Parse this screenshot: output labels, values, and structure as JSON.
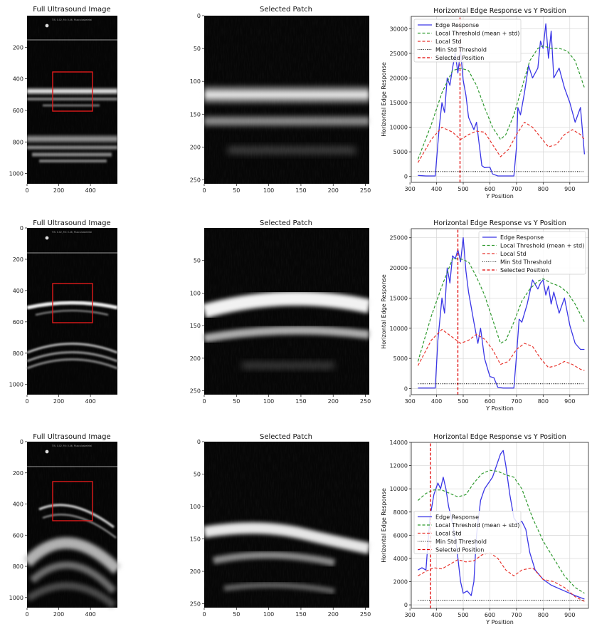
{
  "figure": {
    "rows": [
      {
        "us_image": {
          "title": "Full Ultrasound Image",
          "header_text": "TIS: 0.02, MI: 0.46, Musculoskeletal",
          "xticks": [
            "0",
            "200",
            "400"
          ],
          "yticks": [
            "200",
            "400",
            "600",
            "800",
            "1000"
          ],
          "variant": "flat"
        },
        "patch": {
          "title": "Selected Patch",
          "xticks": [
            "0",
            "50",
            "100",
            "150",
            "200",
            "250"
          ],
          "yticks": [
            "0",
            "50",
            "100",
            "150",
            "200",
            "250"
          ]
        }
      },
      {
        "us_image": {
          "title": "Full Ultrasound Image",
          "header_text": "TIS: 0.02, MI: 0.46, Musculoskeletal",
          "xticks": [
            "0",
            "200",
            "400"
          ],
          "yticks": [
            "0",
            "200",
            "400",
            "600",
            "800",
            "1000"
          ],
          "variant": "curved"
        },
        "patch": {
          "title": "Selected Patch",
          "xticks": [
            "0",
            "50",
            "100",
            "150",
            "200",
            "250"
          ],
          "yticks": [
            "50",
            "100",
            "150",
            "200",
            "250"
          ]
        }
      },
      {
        "us_image": {
          "title": "Full Ultrasound Image",
          "header_text": "TIS: 0.02, MI: 0.46, Musculoskeletal",
          "xticks": [
            "0",
            "200",
            "400"
          ],
          "yticks": [
            "0",
            "200",
            "400",
            "600",
            "800",
            "1000"
          ],
          "variant": "arch"
        },
        "patch": {
          "title": "Selected Patch",
          "xticks": [
            "0",
            "50",
            "100",
            "150",
            "200",
            "250"
          ],
          "yticks": [
            "0",
            "50",
            "100",
            "150",
            "200",
            "250"
          ]
        }
      }
    ],
    "colors": {
      "edge": "#3a36e6",
      "threshold": "#2f9a2f",
      "std": "#e8352e",
      "min_std": "#111111",
      "selected": "#e00000",
      "box": "#e01a1a"
    }
  },
  "chart_data": [
    {
      "type": "line",
      "title": "Horizontal Edge Response vs Y Position",
      "xlabel": "Y Position",
      "ylabel": "Horizontal Edge Response",
      "xlim": [
        305,
        970
      ],
      "ylim": [
        -1200,
        32500
      ],
      "xticks": [
        300,
        400,
        500,
        600,
        700,
        800,
        900
      ],
      "yticks": [
        0,
        5000,
        10000,
        15000,
        20000,
        25000,
        30000
      ],
      "grid": true,
      "legend": "top-left",
      "legend_entries": [
        "Edge Response",
        "Local Threshold (mean + std)",
        "Local Std",
        "Min Std Threshold",
        "Selected Position"
      ],
      "series": [
        {
          "name": "Edge Response",
          "x": [
            330,
            360,
            395,
            410,
            420,
            430,
            440,
            450,
            460,
            470,
            480,
            490,
            500,
            510,
            520,
            540,
            550,
            560,
            570,
            580,
            600,
            610,
            630,
            650,
            690,
            700,
            705,
            715,
            730,
            745,
            760,
            780,
            790,
            800,
            810,
            820,
            830,
            840,
            860,
            880,
            900,
            920,
            940,
            955
          ],
          "y": [
            200,
            100,
            100,
            10000,
            15000,
            13000,
            20000,
            18500,
            22000,
            25000,
            21000,
            25500,
            19500,
            16500,
            12000,
            9500,
            11000,
            6500,
            2200,
            1800,
            1900,
            500,
            100,
            100,
            100,
            6000,
            14000,
            12500,
            17000,
            22500,
            20000,
            22000,
            27500,
            26000,
            31000,
            24000,
            29500,
            20000,
            22000,
            18000,
            15000,
            11000,
            14000,
            4500
          ]
        },
        {
          "name": "Local Threshold (mean + std)",
          "x": [
            330,
            380,
            420,
            460,
            490,
            520,
            550,
            580,
            610,
            640,
            660,
            690,
            720,
            750,
            780,
            800,
            830,
            860,
            890,
            920,
            955
          ],
          "y": [
            3500,
            10500,
            17000,
            21500,
            22000,
            21500,
            18500,
            14000,
            10000,
            7500,
            8500,
            12500,
            18000,
            23500,
            26000,
            26500,
            26000,
            26000,
            25500,
            23500,
            18000
          ]
        },
        {
          "name": "Local Std",
          "x": [
            330,
            380,
            420,
            460,
            490,
            520,
            550,
            580,
            610,
            640,
            670,
            700,
            730,
            760,
            790,
            820,
            850,
            880,
            910,
            940,
            955
          ],
          "y": [
            2800,
            7500,
            10000,
            9000,
            7500,
            8500,
            9200,
            9000,
            6500,
            4000,
            5500,
            8500,
            11000,
            10000,
            8000,
            6000,
            6500,
            8500,
            9500,
            8500,
            7500
          ]
        },
        {
          "name": "Min Std Threshold",
          "x": [
            330,
            955
          ],
          "y": [
            1000,
            1000
          ]
        },
        {
          "name": "Selected Position",
          "x": [
            488,
            488
          ],
          "y": [
            -1200,
            32500
          ]
        }
      ]
    },
    {
      "type": "line",
      "title": "Horizontal Edge Response vs Y Position",
      "xlabel": "Y Position",
      "ylabel": "Horizontal Edge Response",
      "xlim": [
        305,
        970
      ],
      "ylim": [
        -1000,
        26500
      ],
      "xticks": [
        300,
        400,
        500,
        600,
        700,
        800,
        900
      ],
      "yticks": [
        0,
        5000,
        10000,
        15000,
        20000,
        25000
      ],
      "grid": true,
      "legend": "top-right",
      "legend_entries": [
        "Edge Response",
        "Local Threshold (mean + std)",
        "Local Std",
        "Min Std Threshold",
        "Selected Position"
      ],
      "series": [
        {
          "name": "Edge Response",
          "x": [
            330,
            360,
            395,
            405,
            420,
            430,
            440,
            450,
            460,
            470,
            480,
            490,
            500,
            510,
            520,
            540,
            555,
            565,
            580,
            600,
            615,
            630,
            650,
            690,
            700,
            710,
            720,
            740,
            760,
            780,
            790,
            800,
            810,
            820,
            830,
            840,
            860,
            880,
            900,
            920,
            940,
            955
          ],
          "y": [
            100,
            100,
            100,
            8000,
            15000,
            12500,
            20000,
            17500,
            22000,
            21500,
            23000,
            21000,
            25000,
            19500,
            16000,
            11000,
            7500,
            10000,
            5000,
            2000,
            1800,
            200,
            100,
            100,
            5500,
            11500,
            11000,
            14000,
            18000,
            16500,
            17500,
            18000,
            15500,
            17000,
            14000,
            16000,
            12500,
            15000,
            10500,
            7500,
            6500,
            6500
          ]
        },
        {
          "name": "Local Threshold (mean + std)",
          "x": [
            330,
            380,
            420,
            460,
            490,
            520,
            550,
            580,
            610,
            640,
            660,
            690,
            720,
            750,
            780,
            800,
            830,
            860,
            890,
            920,
            955
          ],
          "y": [
            4500,
            12000,
            17000,
            21500,
            21500,
            21000,
            18500,
            15500,
            11500,
            7500,
            8000,
            11000,
            14500,
            16500,
            17800,
            18200,
            17500,
            17000,
            16000,
            14000,
            11000
          ]
        },
        {
          "name": "Local Std",
          "x": [
            330,
            380,
            420,
            460,
            490,
            520,
            550,
            580,
            610,
            640,
            670,
            700,
            730,
            760,
            790,
            820,
            850,
            880,
            910,
            940,
            955
          ],
          "y": [
            3800,
            8000,
            9800,
            8500,
            7500,
            8000,
            9000,
            8200,
            6500,
            4000,
            4500,
            6500,
            7500,
            7000,
            5000,
            3500,
            3800,
            4500,
            4000,
            3200,
            3000
          ]
        },
        {
          "name": "Min Std Threshold",
          "x": [
            330,
            955
          ],
          "y": [
            800,
            800
          ]
        },
        {
          "name": "Selected Position",
          "x": [
            480,
            480
          ],
          "y": [
            -1000,
            26500
          ]
        }
      ]
    },
    {
      "type": "line",
      "title": "Horizontal Edge Response vs Y Position",
      "xlabel": "Y Position",
      "ylabel": "Horizontal Edge Response",
      "xlim": [
        305,
        970
      ],
      "ylim": [
        -300,
        14000
      ],
      "xticks": [
        300,
        400,
        500,
        600,
        700,
        800,
        900
      ],
      "yticks": [
        0,
        2000,
        4000,
        6000,
        8000,
        10000,
        12000,
        14000
      ],
      "grid": true,
      "legend": "center-left",
      "legend_entries": [
        "Edge Response",
        "Local Threshold (mean + std)",
        "Local Std",
        "Min Std Threshold",
        "Selected Position"
      ],
      "series": [
        {
          "name": "Edge Response",
          "x": [
            330,
            345,
            360,
            375,
            390,
            405,
            415,
            425,
            435,
            445,
            460,
            475,
            490,
            500,
            515,
            530,
            540,
            550,
            565,
            580,
            595,
            610,
            625,
            640,
            650,
            660,
            675,
            690,
            705,
            720,
            735,
            750,
            770,
            800,
            830,
            860,
            890,
            920,
            955
          ],
          "y": [
            3000,
            3200,
            3000,
            7500,
            9500,
            10500,
            10000,
            11000,
            10000,
            8500,
            7000,
            5000,
            2000,
            1000,
            1200,
            800,
            2000,
            6000,
            9000,
            10000,
            10500,
            11000,
            12000,
            13000,
            13300,
            12000,
            9500,
            7500,
            7000,
            7200,
            6500,
            4500,
            3000,
            2200,
            1700,
            1400,
            1100,
            800,
            500
          ]
        },
        {
          "name": "Local Threshold (mean + std)",
          "x": [
            330,
            360,
            390,
            420,
            450,
            480,
            510,
            540,
            570,
            600,
            630,
            660,
            690,
            720,
            760,
            800,
            840,
            880,
            920,
            955
          ],
          "y": [
            9000,
            9600,
            9900,
            9900,
            9600,
            9300,
            9500,
            10500,
            11300,
            11600,
            11500,
            11200,
            11000,
            10000,
            7500,
            5500,
            4000,
            2500,
            1500,
            1000
          ]
        },
        {
          "name": "Local Std",
          "x": [
            330,
            360,
            390,
            420,
            450,
            480,
            510,
            540,
            570,
            600,
            630,
            660,
            690,
            720,
            760,
            800,
            840,
            880,
            920,
            955
          ],
          "y": [
            2500,
            2900,
            3200,
            3100,
            3500,
            3900,
            3700,
            3800,
            4300,
            4500,
            4000,
            3000,
            2500,
            3000,
            3200,
            2200,
            2000,
            1500,
            700,
            300
          ]
        },
        {
          "name": "Min Std Threshold",
          "x": [
            330,
            955
          ],
          "y": [
            400,
            400
          ]
        },
        {
          "name": "Selected Position",
          "x": [
            377,
            377
          ],
          "y": [
            -300,
            14000
          ]
        }
      ]
    }
  ]
}
